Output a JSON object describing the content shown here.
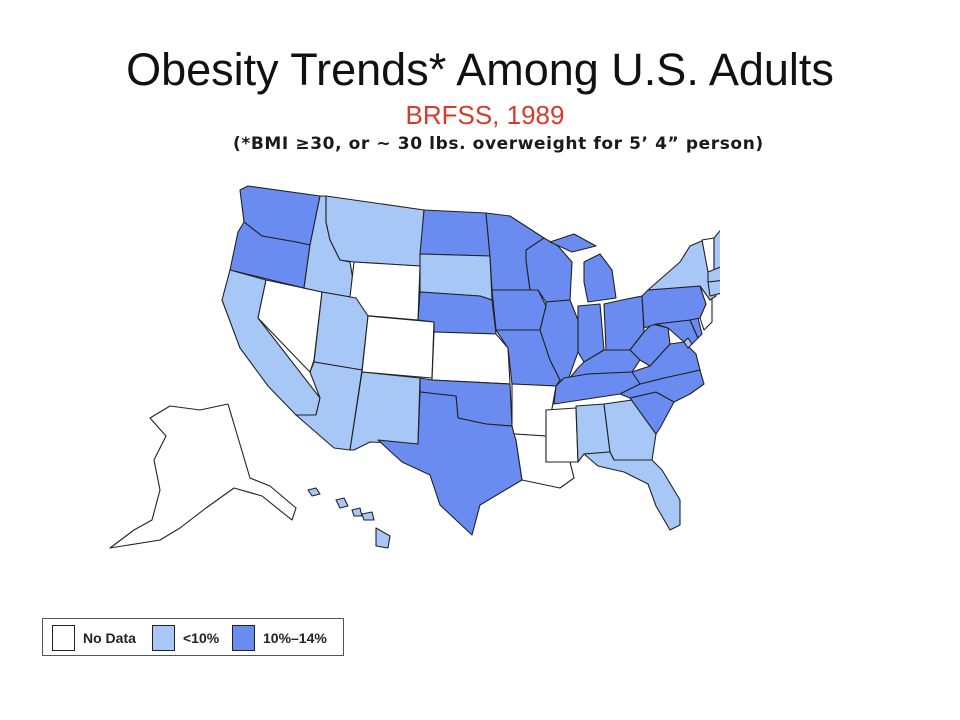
{
  "title": "Obesity Trends* Among U.S. Adults",
  "subtitle": "BRFSS, 1989",
  "footnote": "(*BMI ≥30, or ~ 30 lbs. overweight for 5’ 4” person)",
  "colors": {
    "no_data": "#ffffff",
    "under_10": "#a7c7f7",
    "10_14": "#6a8cf0",
    "border": "#222222"
  },
  "legend": [
    {
      "label": "No Data",
      "color_key": "no_data"
    },
    {
      "label": "<10%",
      "color_key": "under_10"
    },
    {
      "label": "10%–14%",
      "color_key": "10_14"
    }
  ],
  "states": {
    "WA": "10_14",
    "OR": "10_14",
    "CA": "under_10",
    "NV": "no_data",
    "ID": "under_10",
    "MT": "under_10",
    "WY": "no_data",
    "UT": "under_10",
    "AZ": "under_10",
    "CO": "no_data",
    "NM": "under_10",
    "ND": "10_14",
    "SD": "under_10",
    "NE": "10_14",
    "KS": "no_data",
    "OK": "10_14",
    "TX": "10_14",
    "MN": "10_14",
    "IA": "10_14",
    "MO": "10_14",
    "AR": "no_data",
    "LA": "no_data",
    "WI": "10_14",
    "IL": "10_14",
    "MI": "10_14",
    "IN": "10_14",
    "OH": "10_14",
    "KY": "10_14",
    "TN": "10_14",
    "MS": "no_data",
    "AL": "under_10",
    "GA": "under_10",
    "FL": "under_10",
    "SC": "10_14",
    "NC": "10_14",
    "VA": "10_14",
    "WV": "10_14",
    "MD": "10_14",
    "DE": "10_14",
    "PA": "10_14",
    "NJ": "no_data",
    "NY": "under_10",
    "CT": "under_10",
    "RI": "under_10",
    "MA": "under_10",
    "VT": "no_data",
    "NH": "under_10",
    "ME": "under_10",
    "AK": "no_data",
    "HI": "under_10",
    "DC": "under_10"
  }
}
